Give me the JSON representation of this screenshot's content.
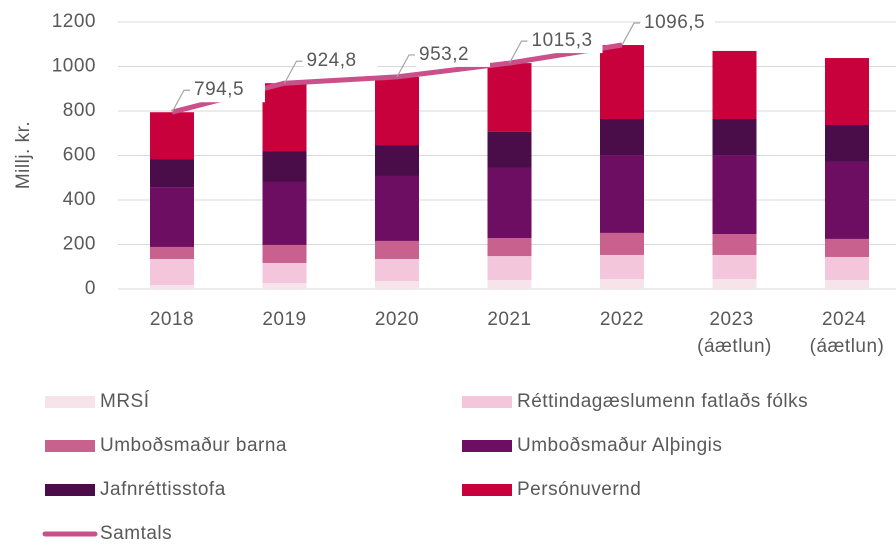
{
  "chart_data": {
    "type": "stacked_bar_line",
    "y_label": "Millj. kr.",
    "categories": [
      "2018",
      "2019",
      "2020",
      "2021",
      "2022",
      "2023 (áætlun)",
      "2024 (áætlun)"
    ],
    "ylim": [
      0,
      1200
    ],
    "yticks": [
      0,
      200,
      400,
      600,
      800,
      1000,
      1200
    ],
    "grid": true,
    "legend": "bottom",
    "series": [
      {
        "name": "MRSÍ",
        "color": "#f7e4ea",
        "values": [
          18,
          27,
          36,
          40,
          45,
          45,
          40
        ]
      },
      {
        "name": "Réttindagæslumenn fatlaðs fólks",
        "color": "#f3c6dc",
        "values": [
          117,
          90,
          99,
          108,
          108,
          108,
          104
        ]
      },
      {
        "name": "Umboðsmaður barna",
        "color": "#c9618f",
        "values": [
          54,
          81,
          81,
          81,
          99,
          94,
          81
        ]
      },
      {
        "name": "Umboðsmaður Alþingis",
        "color": "#6e0e62",
        "values": [
          269,
          283,
          292,
          315,
          350,
          355,
          346
        ]
      },
      {
        "name": "Jafnréttisstofa",
        "color": "#4b0c4a",
        "values": [
          126,
          139,
          139,
          162,
          162,
          162,
          166
        ]
      },
      {
        "name": "Persónuvernd",
        "color": "#c8003c",
        "values": [
          210.5,
          304.8,
          306.2,
          309.3,
          332.5,
          306,
          301
        ]
      }
    ],
    "line": {
      "name": "Samtals",
      "color": "#c9508a",
      "values": [
        794.5,
        924.8,
        953.2,
        1015.3,
        1096.5,
        null,
        null
      ],
      "value_labels": [
        "794,5",
        "924,8",
        "953,2",
        "1015,3",
        "1096,5",
        null,
        null
      ]
    }
  }
}
